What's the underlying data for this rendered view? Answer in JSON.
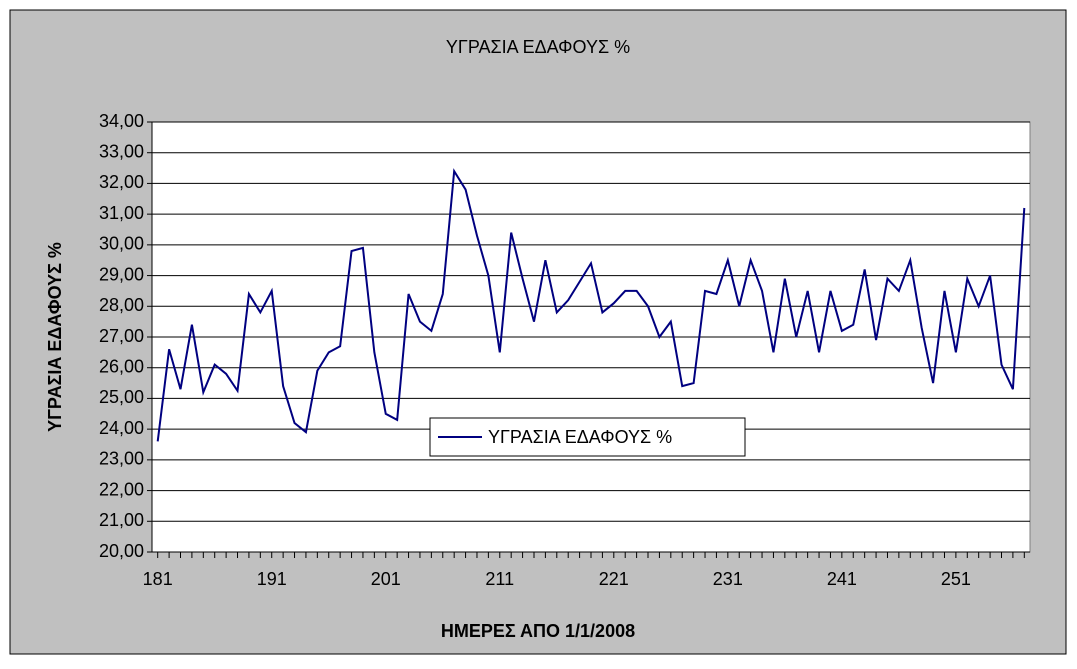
{
  "chart_data": {
    "type": "line",
    "title": "ΥΓΡΑΣΙΑ ΕΔΑΦΟΥΣ %",
    "x_label": "ΗΜΕΡΕΣ ΑΠΟ 1/1/2008",
    "y_label": "ΥΓΡΑΣΙΑ ΕΔΑΦΟΥΣ %",
    "x": [
      181,
      182,
      183,
      184,
      185,
      186,
      187,
      188,
      189,
      190,
      191,
      192,
      193,
      194,
      195,
      196,
      197,
      198,
      199,
      200,
      201,
      202,
      203,
      204,
      205,
      206,
      207,
      208,
      209,
      210,
      211,
      212,
      213,
      214,
      215,
      216,
      217,
      218,
      219,
      220,
      221,
      222,
      223,
      224,
      225,
      226,
      227,
      228,
      229,
      230,
      231,
      232,
      233,
      234,
      235,
      236,
      237,
      238,
      239,
      240,
      241,
      242,
      243,
      244,
      245,
      246,
      247,
      248,
      249,
      250,
      251,
      252,
      253,
      254,
      255,
      256,
      257
    ],
    "series": [
      {
        "name": "ΥΓΡΑΣΙΑ ΕΔΑΦΟΥΣ %",
        "color": "#000080",
        "values": [
          23.6,
          26.6,
          25.3,
          27.4,
          25.2,
          26.1,
          25.8,
          25.25,
          28.4,
          27.8,
          28.5,
          25.4,
          24.2,
          23.9,
          25.9,
          26.5,
          26.7,
          29.8,
          29.9,
          26.5,
          24.5,
          24.3,
          28.4,
          27.5,
          27.2,
          28.4,
          32.4,
          31.8,
          30.3,
          29.0,
          26.5,
          30.4,
          28.9,
          27.5,
          29.5,
          27.8,
          28.2,
          28.8,
          29.4,
          27.8,
          28.1,
          28.5,
          28.5,
          28.0,
          27.0,
          27.5,
          25.4,
          25.5,
          28.5,
          28.4,
          29.5,
          28.0,
          29.5,
          28.5,
          26.5,
          28.9,
          27.0,
          28.5,
          26.5,
          28.5,
          27.2,
          27.4,
          29.2,
          26.9,
          28.9,
          28.5,
          29.5,
          27.3,
          25.5,
          28.5,
          26.5,
          28.9,
          28.0,
          29.0,
          26.1,
          25.3,
          31.2
        ]
      }
    ],
    "xlim": [
      180.5,
      257.5
    ],
    "xticks": [
      181,
      191,
      201,
      211,
      221,
      231,
      241,
      251
    ],
    "ylim": [
      20,
      34
    ],
    "yticks": [
      {
        "value": 20,
        "label": "20,00"
      },
      {
        "value": 21,
        "label": "21,00"
      },
      {
        "value": 22,
        "label": "22,00"
      },
      {
        "value": 23,
        "label": "23,00"
      },
      {
        "value": 24,
        "label": "24,00"
      },
      {
        "value": 25,
        "label": "25,00"
      },
      {
        "value": 26,
        "label": "26,00"
      },
      {
        "value": 27,
        "label": "27,00"
      },
      {
        "value": 28,
        "label": "28,00"
      },
      {
        "value": 29,
        "label": "29,00"
      },
      {
        "value": 30,
        "label": "30,00"
      },
      {
        "value": 31,
        "label": "31,00"
      },
      {
        "value": 32,
        "label": "32,00"
      },
      {
        "value": 33,
        "label": "33,00"
      },
      {
        "value": 34,
        "label": "34,00"
      }
    ],
    "grid": true,
    "legend": "center"
  }
}
